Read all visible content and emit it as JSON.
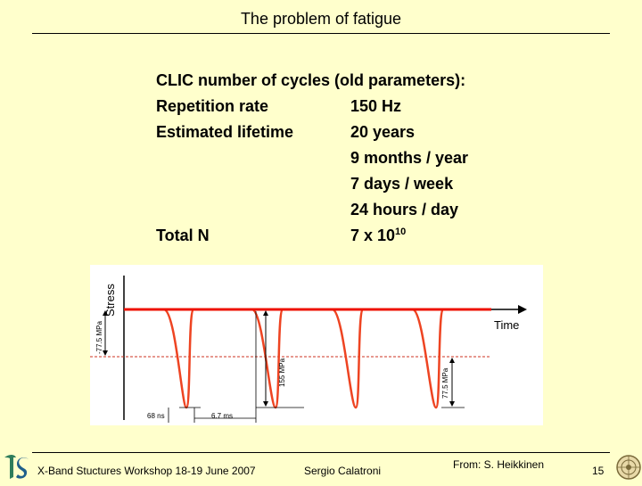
{
  "slide": {
    "title": "The problem of fatigue",
    "heading": "CLIC number of cycles (old parameters):",
    "rows": [
      {
        "label": "Repetition rate",
        "value": "150 Hz"
      },
      {
        "label": "Estimated lifetime",
        "value": "20 years"
      },
      {
        "label": "",
        "value": "9 months / year"
      },
      {
        "label": "",
        "value": "7 days / week"
      },
      {
        "label": "",
        "value": "24 hours / day"
      }
    ],
    "total": {
      "label": "Total N",
      "value_base": "7 x 10",
      "value_exp": "10"
    }
  },
  "diagram": {
    "y_label": "Stress",
    "x_label": "Time",
    "left_stress_label": "-77.5 MPa",
    "mid_stress_label": "155 MPa",
    "right_stress_label": "77.5 MPa",
    "pulse_width_label": "68 ns",
    "period_label": "6.7 ms",
    "colors": {
      "baseline": "#ee1100",
      "pulse": "#ee5533",
      "dashed": "#cc3322",
      "axis": "#000000"
    }
  },
  "footer": {
    "event": "X-Band Stuctures Workshop 18-19 June 2007",
    "author": "Sergio Calatroni",
    "source": "From: S. Heikkinen",
    "page": "15",
    "left_logo": "ts-logo-icon",
    "right_logo": "crest-logo-icon"
  }
}
